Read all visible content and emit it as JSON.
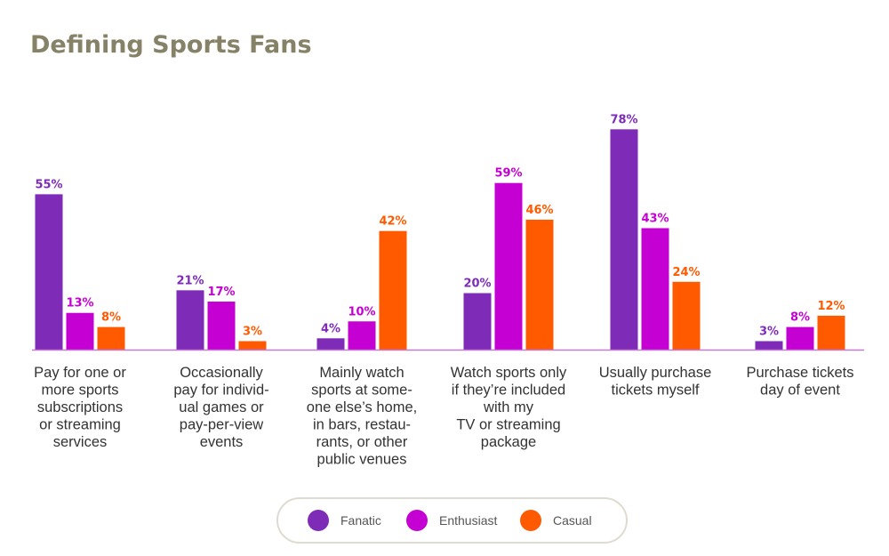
{
  "chart_data": {
    "type": "bar",
    "title": "Defining Sports Fans",
    "categories": [
      [
        "Pay for one or",
        "more sports",
        "subscriptions",
        "or streaming",
        "services"
      ],
      [
        "Occasionally",
        "pay for individ-",
        "ual games or",
        "pay-per-view",
        "events"
      ],
      [
        "Mainly watch",
        "sports at some-",
        "one else’s home,",
        "in bars, restau-",
        "rants, or other",
        "public venues"
      ],
      [
        "Watch sports only",
        "if they’re included",
        "with my",
        "TV or streaming",
        "package"
      ],
      [
        "Usually purchase",
        "tickets myself"
      ],
      [
        "Purchase tickets",
        "day of event"
      ]
    ],
    "series": [
      {
        "name": "Fanatic",
        "color": "#7e2bb8",
        "values": [
          55,
          21,
          4,
          20,
          78,
          3
        ],
        "labels": [
          "55%",
          "21%",
          "4%",
          "20%",
          "78%",
          "3%"
        ]
      },
      {
        "name": "Enthusiast",
        "color": "#c500d3",
        "values": [
          13,
          17,
          10,
          59,
          43,
          8
        ],
        "labels": [
          "13%",
          "17%",
          "10%",
          "59%",
          "43%",
          "8%"
        ]
      },
      {
        "name": "Casual",
        "color": "#ff5a00",
        "values": [
          8,
          3,
          42,
          46,
          24,
          12
        ],
        "labels": [
          "8%",
          "3%",
          "42%",
          "46%",
          "24%",
          "12%"
        ]
      }
    ],
    "ylim": [
      0,
      80
    ],
    "baseline_color": "#c27ad6",
    "legend_position": "bottom-center"
  }
}
